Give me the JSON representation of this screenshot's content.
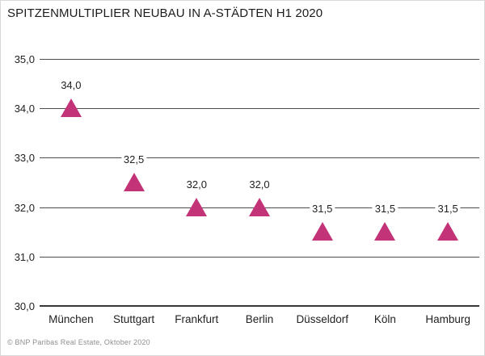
{
  "title": "SPITZENMULTIPLIER NEUBAU IN A-STÄDTEN H1 2020",
  "footer": "© BNP Paribas Real Estate, Oktober 2020",
  "colors": {
    "marker": "#C23377",
    "gridline": "#4d4d4d",
    "axis_baseline": "#383838",
    "text": "#222222",
    "footer_text": "#8f8f8f",
    "background": "#ffffff",
    "border": "#d9d9d9"
  },
  "chart_data": {
    "type": "scatter",
    "marker": "triangle-up",
    "title": "SPITZENMULTIPLIER NEUBAU IN A-STÄDTEN H1 2020",
    "categories": [
      "München",
      "Stuttgart",
      "Frankfurt",
      "Berlin",
      "Düsseldorf",
      "Köln",
      "Hamburg"
    ],
    "values": [
      34.0,
      32.5,
      32.0,
      32.0,
      31.5,
      31.5,
      31.5
    ],
    "value_labels": [
      "34,0",
      "32,5",
      "32,0",
      "32,0",
      "31,5",
      "31,5",
      "31,5"
    ],
    "xlabel": "",
    "ylabel": "",
    "ylim": [
      30.0,
      35.0
    ],
    "yticks": [
      35.0,
      34.0,
      33.0,
      32.0,
      31.0,
      30.0
    ],
    "ytick_labels": [
      "35,0",
      "34,0",
      "33,0",
      "32,0",
      "31,0",
      "30,0"
    ],
    "grid": "horizontal",
    "legend": "none"
  }
}
